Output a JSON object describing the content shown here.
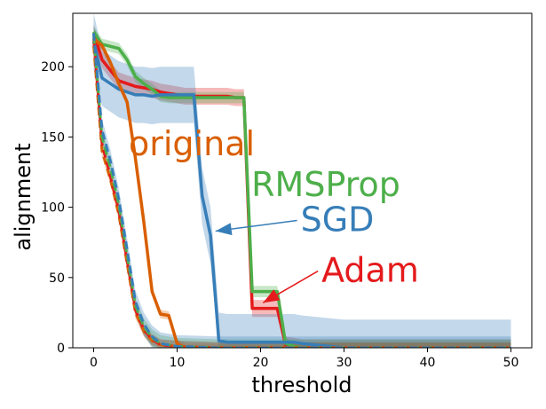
{
  "chart_data": {
    "type": "line",
    "title": "",
    "xlabel": "threshold",
    "ylabel": "alignment",
    "xlim": [
      -2.5,
      52.5
    ],
    "ylim": [
      0,
      238
    ],
    "xticks": [
      "0",
      "10",
      "20",
      "30",
      "40",
      "50"
    ],
    "yticks": [
      "0",
      "50",
      "100",
      "150",
      "200"
    ],
    "grid": false,
    "legend": "none",
    "series": [
      {
        "key": "adam",
        "color": "#e41a1c",
        "style": "solid",
        "x": [
          0,
          1,
          3,
          4,
          5,
          6,
          7,
          8,
          9,
          10,
          11,
          12,
          13,
          14,
          15,
          16,
          17,
          18,
          19,
          20,
          21,
          22,
          23,
          24,
          25,
          30,
          40,
          50
        ],
        "y": [
          224,
          205,
          190,
          188,
          186,
          185,
          184,
          182,
          181,
          180,
          179,
          179,
          179,
          179,
          179,
          179,
          178,
          178,
          28,
          28,
          28,
          28,
          2,
          1,
          0,
          0,
          0,
          0
        ],
        "band": 6
      },
      {
        "key": "rmsprop",
        "color": "#4daf4a",
        "style": "solid",
        "x": [
          0,
          1,
          3,
          4,
          5,
          6,
          7,
          8,
          9,
          10,
          11,
          12,
          13,
          14,
          15,
          16,
          17,
          18,
          19,
          20,
          21,
          22,
          23,
          24,
          25,
          30,
          40,
          50
        ],
        "y": [
          225,
          216,
          213,
          205,
          193,
          188,
          184,
          179,
          178,
          178,
          178,
          178,
          178,
          178,
          178,
          178,
          178,
          178,
          40,
          40,
          40,
          40,
          3,
          1,
          0,
          0,
          0,
          0
        ],
        "band": 4
      },
      {
        "key": "sgd",
        "color": "#377eb8",
        "style": "solid",
        "x": [
          0,
          1,
          3,
          4,
          5,
          6,
          7,
          8,
          9,
          10,
          11,
          12,
          13,
          14,
          15,
          16,
          17,
          18,
          19,
          20,
          21,
          22,
          23,
          24,
          25,
          30,
          40,
          50
        ],
        "y": [
          218,
          192,
          184,
          182,
          180,
          180,
          179,
          180,
          180,
          180,
          180,
          180,
          108,
          80,
          5,
          4,
          4,
          4,
          4,
          4,
          4,
          4,
          4,
          4,
          3,
          0,
          0,
          0
        ],
        "band": 20
      },
      {
        "key": "original",
        "color": "#d95f02",
        "style": "solid",
        "x": [
          0,
          1,
          2,
          3,
          4,
          5,
          6,
          7,
          8,
          9,
          10,
          11,
          12,
          15,
          20,
          30,
          40,
          50
        ],
        "y": [
          220,
          215,
          203,
          188,
          175,
          135,
          90,
          40,
          24,
          23,
          3,
          0,
          0,
          0,
          0,
          0,
          0,
          0
        ],
        "band": 3
      },
      {
        "key": "original_dashed",
        "color": "#d95f02",
        "style": "dashed",
        "x": [
          0,
          1,
          2,
          3,
          4,
          5,
          6,
          7,
          8,
          10,
          15,
          20,
          30,
          40,
          50
        ],
        "y": [
          215,
          140,
          120,
          95,
          60,
          25,
          12,
          5,
          2,
          1,
          0,
          0,
          0,
          0,
          0
        ],
        "band": 4
      },
      {
        "key": "adam_dashed",
        "color": "#e41a1c",
        "style": "dashed",
        "x": [
          0,
          1,
          2,
          3,
          4,
          5,
          6,
          7,
          8,
          10,
          15,
          20,
          30,
          40,
          50
        ],
        "y": [
          220,
          145,
          122,
          98,
          62,
          27,
          13,
          6,
          2,
          1,
          0,
          0,
          0,
          0,
          0
        ],
        "band": 4
      },
      {
        "key": "rmsprop_dashed",
        "color": "#4daf4a",
        "style": "dashed",
        "x": [
          0,
          1,
          2,
          3,
          4,
          5,
          6,
          7,
          8,
          10,
          15,
          20,
          30,
          40,
          50
        ],
        "y": [
          222,
          150,
          128,
          102,
          66,
          30,
          15,
          7,
          3,
          1,
          0,
          0,
          0,
          0,
          0
        ],
        "band": 6
      },
      {
        "key": "sgd_dashed",
        "color": "#377eb8",
        "style": "dashed",
        "x": [
          0,
          1,
          2,
          3,
          4,
          5,
          6,
          7,
          8,
          10,
          15,
          20,
          30,
          40,
          50
        ],
        "y": [
          224,
          155,
          133,
          106,
          70,
          33,
          17,
          8,
          3,
          1,
          0,
          0,
          0,
          0,
          0
        ],
        "band": 8
      }
    ],
    "annotations": [
      {
        "text": "original",
        "color": "#d95f02",
        "x": 4.2,
        "y": 137
      },
      {
        "text": "RMSProp",
        "color": "#4daf4a",
        "x": 18.9,
        "y": 108
      },
      {
        "text": "SGD",
        "color": "#377eb8",
        "x": 24.8,
        "y": 83,
        "arrow_to": [
          14.6,
          83
        ]
      },
      {
        "text": "Adam",
        "color": "#e41a1c",
        "x": 27.3,
        "y": 47,
        "arrow_to": [
          20.3,
          32
        ]
      }
    ]
  }
}
